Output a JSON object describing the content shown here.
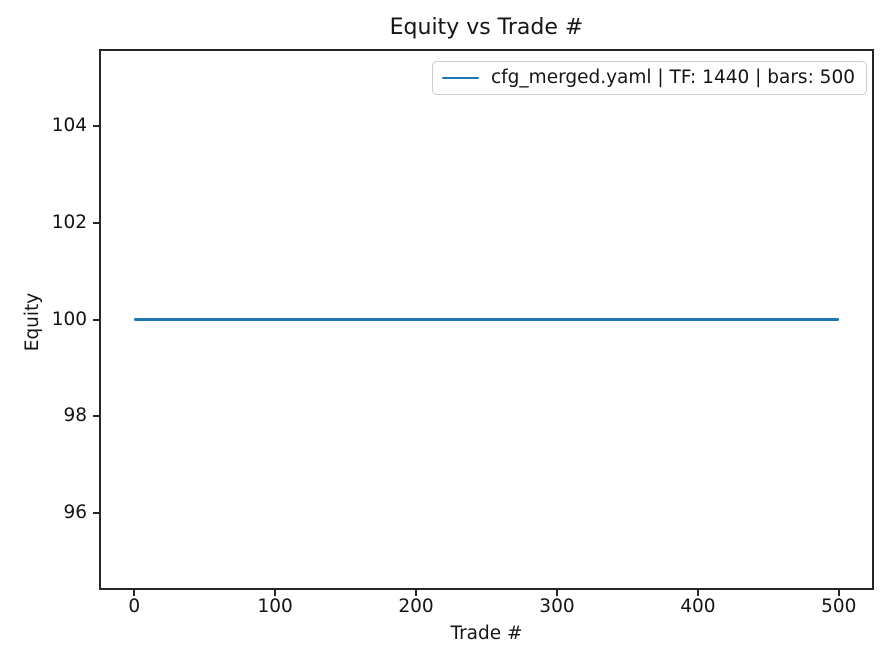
{
  "chart_data": {
    "type": "line",
    "title": "Equity vs Trade #",
    "xlabel": "Trade #",
    "ylabel": "Equity",
    "xlim": [
      -25,
      525
    ],
    "ylim": [
      94.4,
      105.6
    ],
    "xticks": [
      0,
      100,
      200,
      300,
      400,
      500
    ],
    "yticks": [
      96,
      98,
      100,
      102,
      104
    ],
    "grid": false,
    "legend": {
      "position": "upper right",
      "entries": [
        {
          "label": "cfg_merged.yaml | TF: 1440 | bars: 500",
          "color": "#1f77b4"
        }
      ]
    },
    "series": [
      {
        "name": "cfg_merged.yaml | TF: 1440 | bars: 500",
        "color": "#1f77b4",
        "x": [
          0,
          500
        ],
        "y": [
          100,
          100
        ]
      }
    ]
  },
  "colors": {
    "line": "#1f77b4",
    "axis": "#262626",
    "text": "#151515",
    "legend_border": "#cccccc",
    "background": "#ffffff"
  }
}
